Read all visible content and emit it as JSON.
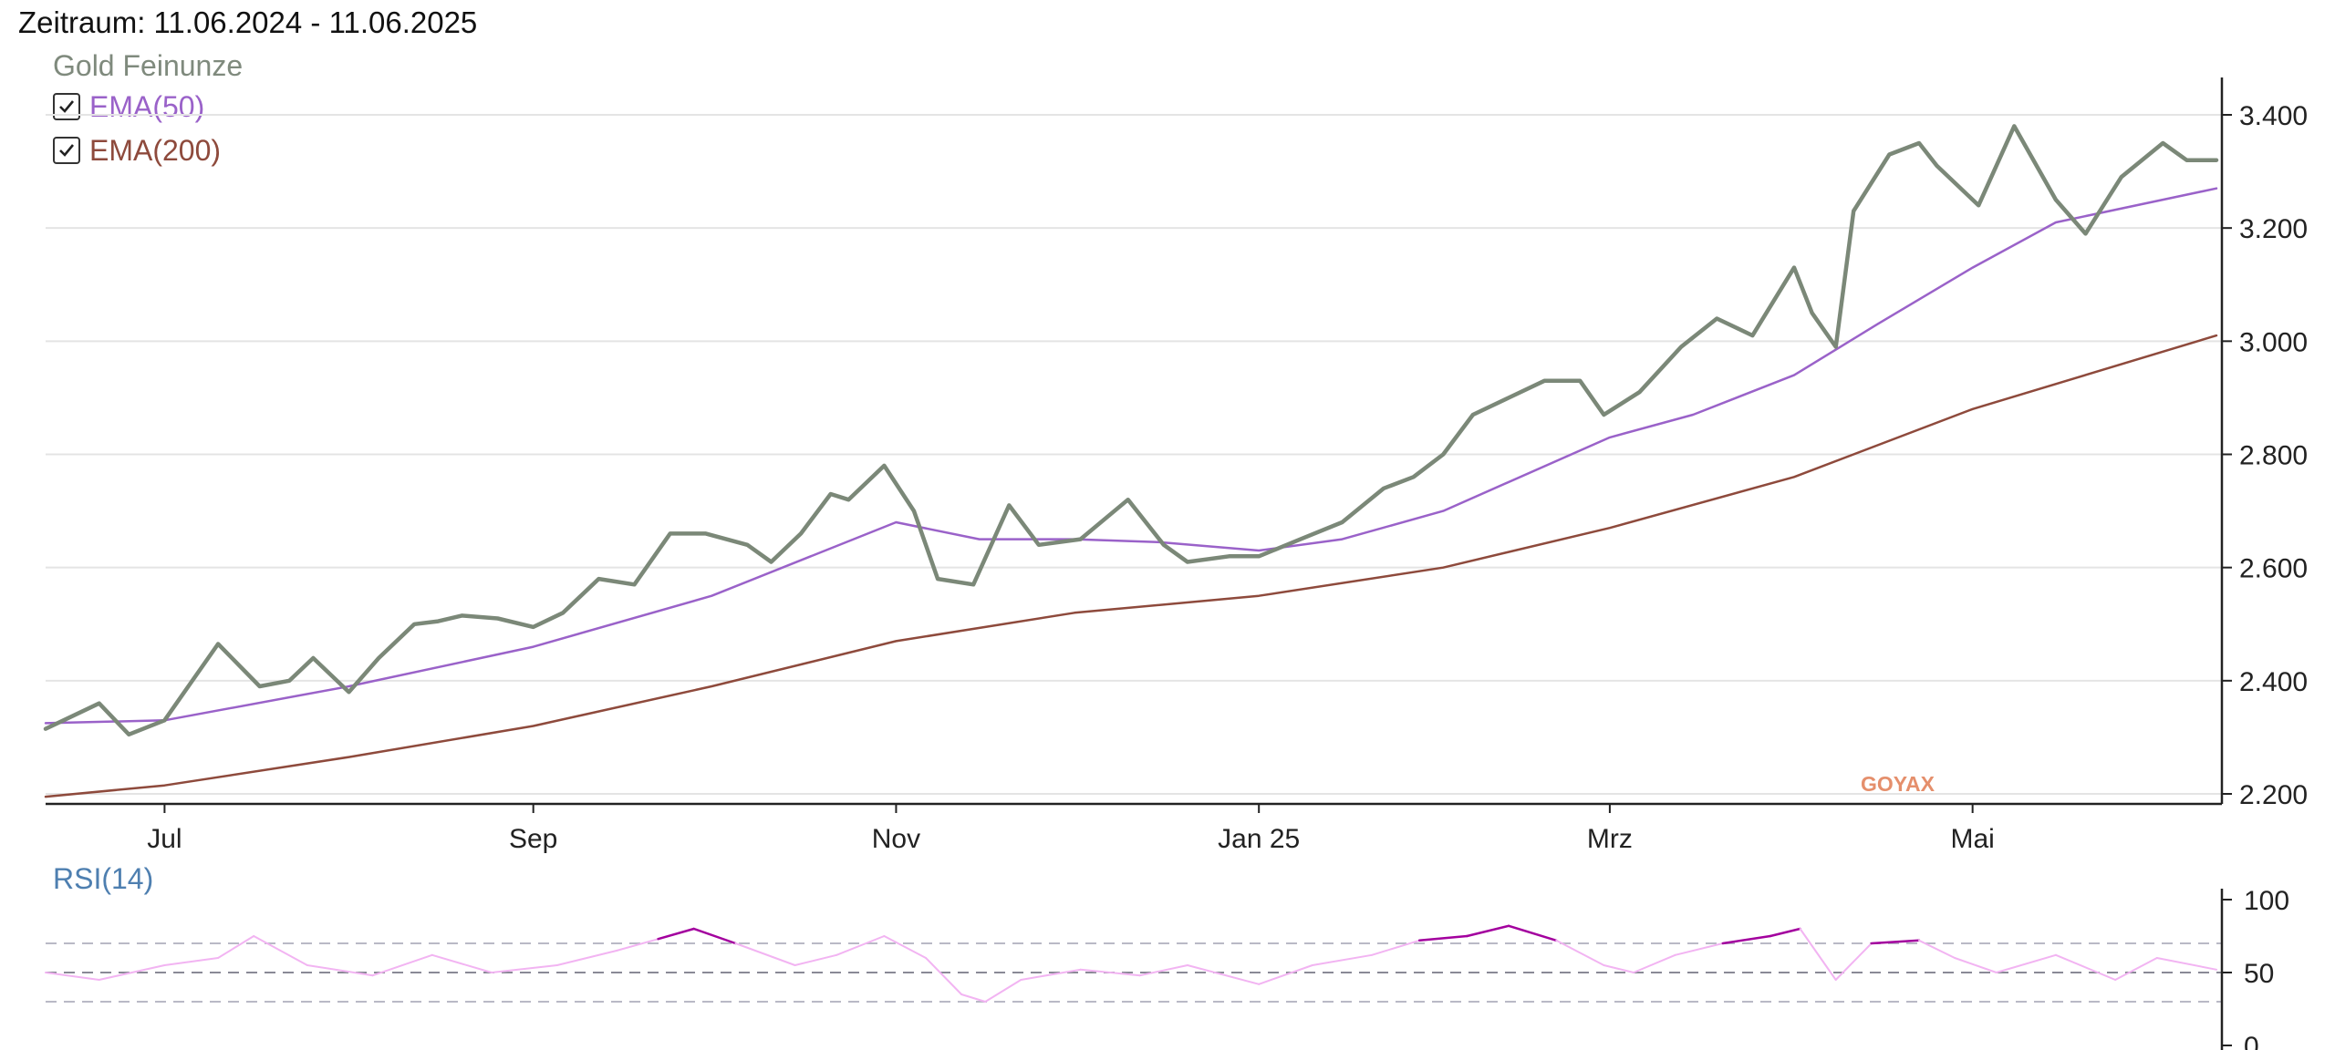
{
  "period_label": "Zeitraum: 11.06.2024 - 11.06.2025",
  "series_title": "Gold Feinunze",
  "indicators": [
    {
      "label": "EMA(50)",
      "checked": true,
      "color": "#9a62c9"
    },
    {
      "label": "EMA(200)",
      "checked": true,
      "color": "#8e4a3c"
    }
  ],
  "watermark": "GOYAX",
  "colors": {
    "price": "#7b8878",
    "ema50": "#9a62c9",
    "ema200": "#8e4a3c",
    "rsi_normal": "#f2b4f2",
    "rsi_extreme": "#a3009e",
    "grid": "#e4e4e4",
    "axis": "#222222",
    "watermark": "#e58f6c"
  },
  "chart_data": [
    {
      "type": "line",
      "title": "Gold Feinunze",
      "x_ticks": [
        "Jul",
        "Sep",
        "Nov",
        "Jan 25",
        "Mrz",
        "Mai"
      ],
      "x_tick_dates": [
        "2024-07-01",
        "2024-09-01",
        "2024-11-01",
        "2025-01-01",
        "2025-03-01",
        "2025-05-01"
      ],
      "x_range": [
        "2024-06-11",
        "2025-06-11"
      ],
      "y_ticks": [
        "2.200",
        "2.400",
        "2.600",
        "2.800",
        "3.000",
        "3.200",
        "3.400"
      ],
      "ylim": [
        2180,
        3460
      ],
      "y_axis_position": "right",
      "grid": "horizontal",
      "series": [
        {
          "name": "Gold Feinunze",
          "x": [
            "2024-06-11",
            "2024-06-14",
            "2024-06-20",
            "2024-06-25",
            "2024-07-01",
            "2024-07-05",
            "2024-07-10",
            "2024-07-17",
            "2024-07-22",
            "2024-07-26",
            "2024-08-01",
            "2024-08-06",
            "2024-08-12",
            "2024-08-16",
            "2024-08-20",
            "2024-08-26",
            "2024-09-01",
            "2024-09-06",
            "2024-09-12",
            "2024-09-18",
            "2024-09-24",
            "2024-09-30",
            "2024-10-07",
            "2024-10-11",
            "2024-10-16",
            "2024-10-21",
            "2024-10-24",
            "2024-10-30",
            "2024-11-04",
            "2024-11-08",
            "2024-11-14",
            "2024-11-20",
            "2024-11-25",
            "2024-12-02",
            "2024-12-10",
            "2024-12-16",
            "2024-12-20",
            "2024-12-27",
            "2025-01-01",
            "2025-01-08",
            "2025-01-15",
            "2025-01-22",
            "2025-01-27",
            "2025-02-01",
            "2025-02-06",
            "2025-02-12",
            "2025-02-18",
            "2025-02-24",
            "2025-02-28",
            "2025-03-06",
            "2025-03-13",
            "2025-03-19",
            "2025-03-25",
            "2025-04-01",
            "2025-04-04",
            "2025-04-08",
            "2025-04-11",
            "2025-04-17",
            "2025-04-22",
            "2025-04-25",
            "2025-05-02",
            "2025-05-08",
            "2025-05-15",
            "2025-05-20",
            "2025-05-26",
            "2025-06-02",
            "2025-06-06",
            "2025-06-11"
          ],
          "values": [
            2315,
            2330,
            2360,
            2305,
            2330,
            2390,
            2465,
            2390,
            2400,
            2440,
            2380,
            2440,
            2500,
            2505,
            2515,
            2510,
            2495,
            2520,
            2580,
            2570,
            2660,
            2660,
            2640,
            2610,
            2660,
            2730,
            2720,
            2780,
            2700,
            2580,
            2570,
            2710,
            2640,
            2650,
            2720,
            2640,
            2610,
            2620,
            2620,
            2650,
            2680,
            2740,
            2760,
            2800,
            2870,
            2900,
            2930,
            2930,
            2870,
            2910,
            2990,
            3040,
            3010,
            3130,
            3050,
            2990,
            3230,
            3330,
            3350,
            3310,
            3240,
            3380,
            3250,
            3190,
            3290,
            3350,
            3320,
            3320
          ]
        },
        {
          "name": "EMA(50)",
          "x": [
            "2024-06-11",
            "2024-07-01",
            "2024-08-01",
            "2024-09-01",
            "2024-10-01",
            "2024-11-01",
            "2024-11-15",
            "2024-12-01",
            "2024-12-15",
            "2025-01-01",
            "2025-01-15",
            "2025-02-01",
            "2025-03-01",
            "2025-03-15",
            "2025-04-01",
            "2025-04-15",
            "2025-05-01",
            "2025-05-15",
            "2025-06-11"
          ],
          "values": [
            2325,
            2330,
            2390,
            2460,
            2550,
            2680,
            2650,
            2650,
            2645,
            2630,
            2650,
            2700,
            2830,
            2870,
            2940,
            3030,
            3130,
            3210,
            3270
          ]
        },
        {
          "name": "EMA(200)",
          "x": [
            "2024-06-11",
            "2024-07-01",
            "2024-08-01",
            "2024-09-01",
            "2024-10-01",
            "2024-11-01",
            "2024-12-01",
            "2025-01-01",
            "2025-02-01",
            "2025-03-01",
            "2025-04-01",
            "2025-05-01",
            "2025-06-11"
          ],
          "values": [
            2195,
            2215,
            2265,
            2320,
            2390,
            2470,
            2520,
            2550,
            2600,
            2670,
            2760,
            2880,
            3010
          ]
        }
      ]
    },
    {
      "type": "line",
      "title": "RSI(14)",
      "x_range": [
        "2024-06-11",
        "2025-06-11"
      ],
      "y_ticks": [
        "0",
        "50",
        "100"
      ],
      "ylim": [
        0,
        100
      ],
      "reference_lines": [
        30,
        50,
        70
      ],
      "y_axis_position": "right",
      "series": [
        {
          "name": "RSI(14)",
          "x": [
            "2024-06-11",
            "2024-06-20",
            "2024-07-01",
            "2024-07-10",
            "2024-07-16",
            "2024-07-25",
            "2024-08-05",
            "2024-08-15",
            "2024-08-25",
            "2024-09-05",
            "2024-09-15",
            "2024-09-22",
            "2024-09-28",
            "2024-10-05",
            "2024-10-15",
            "2024-10-22",
            "2024-10-30",
            "2024-11-06",
            "2024-11-12",
            "2024-11-16",
            "2024-11-22",
            "2024-12-02",
            "2024-12-12",
            "2024-12-20",
            "2025-01-01",
            "2025-01-10",
            "2025-01-20",
            "2025-01-28",
            "2025-02-05",
            "2025-02-12",
            "2025-02-20",
            "2025-02-28",
            "2025-03-05",
            "2025-03-12",
            "2025-03-20",
            "2025-03-28",
            "2025-04-02",
            "2025-04-08",
            "2025-04-14",
            "2025-04-22",
            "2025-04-28",
            "2025-05-05",
            "2025-05-15",
            "2025-05-25",
            "2025-06-01",
            "2025-06-11"
          ],
          "values": [
            50,
            45,
            55,
            60,
            75,
            55,
            48,
            62,
            50,
            55,
            65,
            73,
            80,
            70,
            55,
            62,
            75,
            60,
            35,
            30,
            45,
            52,
            48,
            55,
            42,
            55,
            62,
            72,
            75,
            82,
            72,
            55,
            50,
            62,
            70,
            75,
            80,
            45,
            70,
            72,
            60,
            50,
            62,
            45,
            60,
            52
          ]
        }
      ]
    }
  ]
}
